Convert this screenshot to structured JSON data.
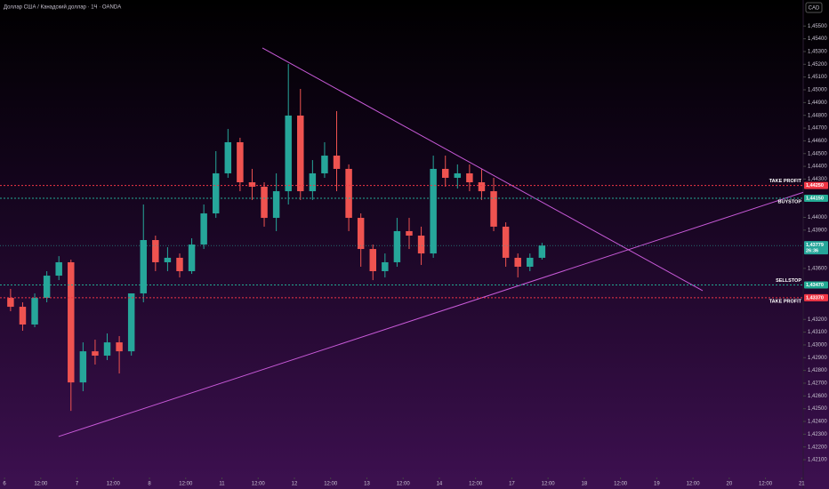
{
  "chart_data": {
    "type": "candlestick",
    "title": "Доллар США / Канадский доллар · 1Ч · OANDA",
    "currency": "CAD",
    "up_color": "#26a69a",
    "down_color": "#ef5350",
    "x": [
      2,
      6,
      10,
      14,
      18,
      22,
      26,
      30,
      34,
      38,
      42,
      46,
      50,
      54,
      58,
      62,
      66,
      70,
      74,
      78,
      82,
      86,
      90,
      94,
      98,
      102,
      106,
      110,
      114,
      118,
      122,
      126,
      130,
      134,
      138,
      142,
      146,
      150,
      154,
      158,
      162,
      166,
      170,
      174,
      178
    ],
    "open": [
      1.43369,
      1.43299,
      1.4316,
      1.43369,
      1.43543,
      1.43648,
      1.42706,
      1.4295,
      1.42916,
      1.4302,
      1.4295,
      1.43404,
      1.43822,
      1.43648,
      1.43683,
      1.43578,
      1.43787,
      1.44031,
      1.44345,
      1.44589,
      1.44275,
      1.4424,
      1.43996,
      1.44205,
      1.44798,
      1.44205,
      1.44345,
      1.44484,
      1.4438,
      1.43996,
      1.43752,
      1.43578,
      1.43648,
      1.43892,
      1.43857,
      1.43717,
      1.4438,
      1.4431,
      1.44345,
      1.44275,
      1.44205,
      1.43927,
      1.43683,
      1.43613,
      1.43683
    ],
    "high": [
      1.43439,
      1.43334,
      1.43404,
      1.43578,
      1.43696,
      1.43669,
      1.4302,
      1.43041,
      1.4309,
      1.43069,
      1.43404,
      1.44101,
      1.43857,
      1.43766,
      1.43717,
      1.43836,
      1.44101,
      1.44519,
      1.44693,
      1.44624,
      1.4438,
      1.44275,
      1.44345,
      1.45202,
      1.45007,
      1.44449,
      1.44589,
      1.44833,
      1.44415,
      1.44031,
      1.43787,
      1.43717,
      1.43996,
      1.43996,
      1.43927,
      1.44484,
      1.44484,
      1.44415,
      1.44415,
      1.4438,
      1.4431,
      1.43961,
      1.43717,
      1.43717,
      1.438
    ],
    "low": [
      1.43264,
      1.43111,
      1.43139,
      1.43334,
      1.43508,
      1.42483,
      1.42637,
      1.42846,
      1.42881,
      1.42776,
      1.42916,
      1.43334,
      1.43578,
      1.43578,
      1.43529,
      1.43557,
      1.43752,
      1.43996,
      1.4431,
      1.44205,
      1.44136,
      1.43927,
      1.43892,
      1.44101,
      1.44136,
      1.44136,
      1.4431,
      1.44205,
      1.43892,
      1.43613,
      1.43508,
      1.43529,
      1.43613,
      1.43752,
      1.43627,
      1.43683,
      1.4424,
      1.44226,
      1.44205,
      1.44136,
      1.43892,
      1.43613,
      1.43529,
      1.43578,
      1.43669
    ],
    "close": [
      1.43299,
      1.4316,
      1.43369,
      1.43543,
      1.43648,
      1.42706,
      1.4295,
      1.42916,
      1.4302,
      1.4295,
      1.43404,
      1.43822,
      1.43648,
      1.43683,
      1.43578,
      1.43787,
      1.44031,
      1.44345,
      1.44589,
      1.44275,
      1.4424,
      1.43996,
      1.44205,
      1.44798,
      1.44205,
      1.44345,
      1.44484,
      1.4438,
      1.43996,
      1.43752,
      1.43578,
      1.43648,
      1.43892,
      1.43857,
      1.43717,
      1.4438,
      1.4431,
      1.44345,
      1.44275,
      1.44205,
      1.43927,
      1.43683,
      1.43613,
      1.43683,
      1.43779
    ],
    "xlim": [
      -1.5,
      264.5
    ],
    "ylim": [
      1.41961,
      1.45704
    ],
    "xticks": [
      {
        "value": 0,
        "label": "6"
      },
      {
        "value": 12,
        "label": "12:00"
      },
      {
        "value": 24,
        "label": "7"
      },
      {
        "value": 36,
        "label": "12:00"
      },
      {
        "value": 48,
        "label": "8"
      },
      {
        "value": 60,
        "label": "12:00"
      },
      {
        "value": 72,
        "label": "11"
      },
      {
        "value": 84,
        "label": "12:00"
      },
      {
        "value": 96,
        "label": "12"
      },
      {
        "value": 108,
        "label": "12:00"
      },
      {
        "value": 120,
        "label": "13"
      },
      {
        "value": 132,
        "label": "12:00"
      },
      {
        "value": 144,
        "label": "14"
      },
      {
        "value": 156,
        "label": "12:00"
      },
      {
        "value": 168,
        "label": "17"
      },
      {
        "value": 180,
        "label": "12:00"
      },
      {
        "value": 192,
        "label": "18"
      },
      {
        "value": 204,
        "label": "12:00"
      },
      {
        "value": 216,
        "label": "19"
      },
      {
        "value": 228,
        "label": "12:00"
      },
      {
        "value": 240,
        "label": "20"
      },
      {
        "value": 252,
        "label": "12:00"
      },
      {
        "value": 264,
        "label": "21"
      }
    ],
    "yticks": [
      {
        "value": 1.421,
        "label": "1,42100"
      },
      {
        "value": 1.422,
        "label": "1,42200"
      },
      {
        "value": 1.423,
        "label": "1,42300"
      },
      {
        "value": 1.424,
        "label": "1,42400"
      },
      {
        "value": 1.425,
        "label": "1,42500"
      },
      {
        "value": 1.426,
        "label": "1,42600"
      },
      {
        "value": 1.427,
        "label": "1,42700"
      },
      {
        "value": 1.428,
        "label": "1,42800"
      },
      {
        "value": 1.429,
        "label": "1,42900"
      },
      {
        "value": 1.43,
        "label": "1,43000"
      },
      {
        "value": 1.431,
        "label": "1,43100"
      },
      {
        "value": 1.432,
        "label": "1,43200"
      },
      {
        "value": 1.436,
        "label": "1,43600"
      },
      {
        "value": 1.439,
        "label": "1,43900"
      },
      {
        "value": 1.44,
        "label": "1,44000"
      },
      {
        "value": 1.443,
        "label": "1,44300"
      },
      {
        "value": 1.444,
        "label": "1,44400"
      },
      {
        "value": 1.445,
        "label": "1,44500"
      },
      {
        "value": 1.446,
        "label": "1,44600"
      },
      {
        "value": 1.447,
        "label": "1,44700"
      },
      {
        "value": 1.448,
        "label": "1,44800"
      },
      {
        "value": 1.449,
        "label": "1,44900"
      },
      {
        "value": 1.45,
        "label": "1,45000"
      },
      {
        "value": 1.451,
        "label": "1,45100"
      },
      {
        "value": 1.452,
        "label": "1,45200"
      },
      {
        "value": 1.453,
        "label": "1,45300"
      },
      {
        "value": 1.454,
        "label": "1,45400"
      },
      {
        "value": 1.455,
        "label": "1,45500"
      }
    ],
    "price_lines": [
      {
        "label": "TAKE PROFIT",
        "value": 1.4425,
        "value_label": "1,44250",
        "color": "#f23645"
      },
      {
        "label": "BUYSTOP",
        "value": 1.4415,
        "value_label": "1,44150",
        "color": "#22ab94"
      },
      {
        "label": "SELLSTOP",
        "value": 1.4347,
        "value_label": "1,43470",
        "color": "#22ab94"
      },
      {
        "label": "TAKE PROFIT",
        "value": 1.4337,
        "value_label": "1,43370",
        "color": "#f23645"
      }
    ],
    "current_price": {
      "value": 1.43779,
      "value_label": "1,43779",
      "countdown": "26:36"
    },
    "trendlines": [
      {
        "x": [
          85.4,
          231.2
        ],
        "y": [
          1.45328,
          1.43425
        ],
        "color": "#c85ad8"
      },
      {
        "x": [
          17.9,
          264.5
        ],
        "y": [
          1.42282,
          1.44196
        ],
        "color": "#c85ad8"
      }
    ]
  }
}
